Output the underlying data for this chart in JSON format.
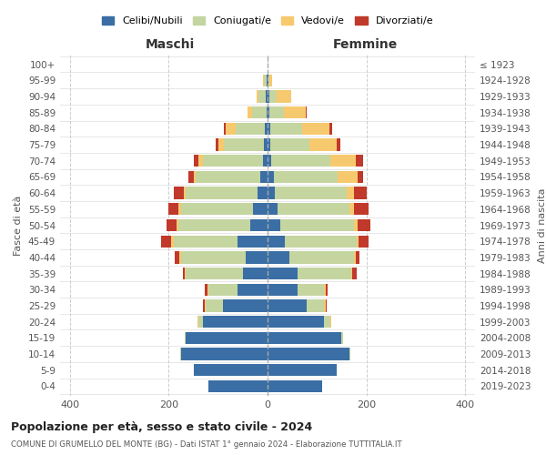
{
  "age_groups": [
    "0-4",
    "5-9",
    "10-14",
    "15-19",
    "20-24",
    "25-29",
    "30-34",
    "35-39",
    "40-44",
    "45-49",
    "50-54",
    "55-59",
    "60-64",
    "65-69",
    "70-74",
    "75-79",
    "80-84",
    "85-89",
    "90-94",
    "95-99",
    "100+"
  ],
  "birth_years": [
    "2019-2023",
    "2014-2018",
    "2009-2013",
    "2004-2008",
    "1999-2003",
    "1994-1998",
    "1989-1993",
    "1984-1988",
    "1979-1983",
    "1974-1978",
    "1969-1973",
    "1964-1968",
    "1959-1963",
    "1954-1958",
    "1949-1953",
    "1944-1948",
    "1939-1943",
    "1934-1938",
    "1929-1933",
    "1924-1928",
    "≤ 1923"
  ],
  "males": {
    "celibi": [
      120,
      150,
      175,
      165,
      130,
      90,
      60,
      50,
      45,
      60,
      35,
      30,
      20,
      15,
      10,
      8,
      5,
      2,
      3,
      2,
      0
    ],
    "coniugati": [
      0,
      0,
      2,
      2,
      10,
      35,
      60,
      115,
      130,
      130,
      145,
      145,
      145,
      130,
      120,
      80,
      60,
      30,
      15,
      5,
      0
    ],
    "vedovi": [
      0,
      0,
      0,
      0,
      2,
      2,
      2,
      2,
      3,
      5,
      5,
      5,
      5,
      5,
      10,
      12,
      20,
      8,
      5,
      2,
      0
    ],
    "divorziati": [
      0,
      0,
      0,
      0,
      0,
      3,
      5,
      5,
      10,
      20,
      20,
      20,
      20,
      10,
      10,
      5,
      3,
      0,
      0,
      0,
      0
    ]
  },
  "females": {
    "nubili": [
      110,
      140,
      165,
      150,
      115,
      80,
      60,
      60,
      45,
      35,
      25,
      20,
      15,
      12,
      8,
      5,
      5,
      3,
      3,
      2,
      0
    ],
    "coniugate": [
      0,
      0,
      2,
      2,
      12,
      35,
      55,
      110,
      130,
      145,
      150,
      145,
      145,
      130,
      120,
      80,
      65,
      30,
      15,
      2,
      0
    ],
    "vedove": [
      0,
      0,
      0,
      0,
      2,
      2,
      2,
      2,
      3,
      5,
      8,
      10,
      15,
      40,
      50,
      55,
      55,
      45,
      30,
      5,
      0
    ],
    "divorziate": [
      0,
      0,
      0,
      0,
      0,
      3,
      5,
      8,
      8,
      20,
      25,
      30,
      25,
      12,
      15,
      8,
      5,
      2,
      0,
      0,
      0
    ]
  },
  "colors": {
    "celibi": "#3a6ea5",
    "coniugati": "#c5d5a0",
    "vedovi": "#f7c96e",
    "divorziati": "#c0392b"
  },
  "xlim": 420,
  "title": "Popolazione per età, sesso e stato civile - 2024",
  "subtitle": "COMUNE DI GRUMELLO DEL MONTE (BG) - Dati ISTAT 1° gennaio 2024 - Elaborazione TUTTITALIA.IT",
  "ylabel_left": "Fasce di età",
  "ylabel_right": "Anni di nascita",
  "xlabel_left": "Maschi",
  "xlabel_right": "Femmine",
  "legend_labels": [
    "Celibi/Nubili",
    "Coniugati/e",
    "Vedovi/e",
    "Divorziati/e"
  ]
}
